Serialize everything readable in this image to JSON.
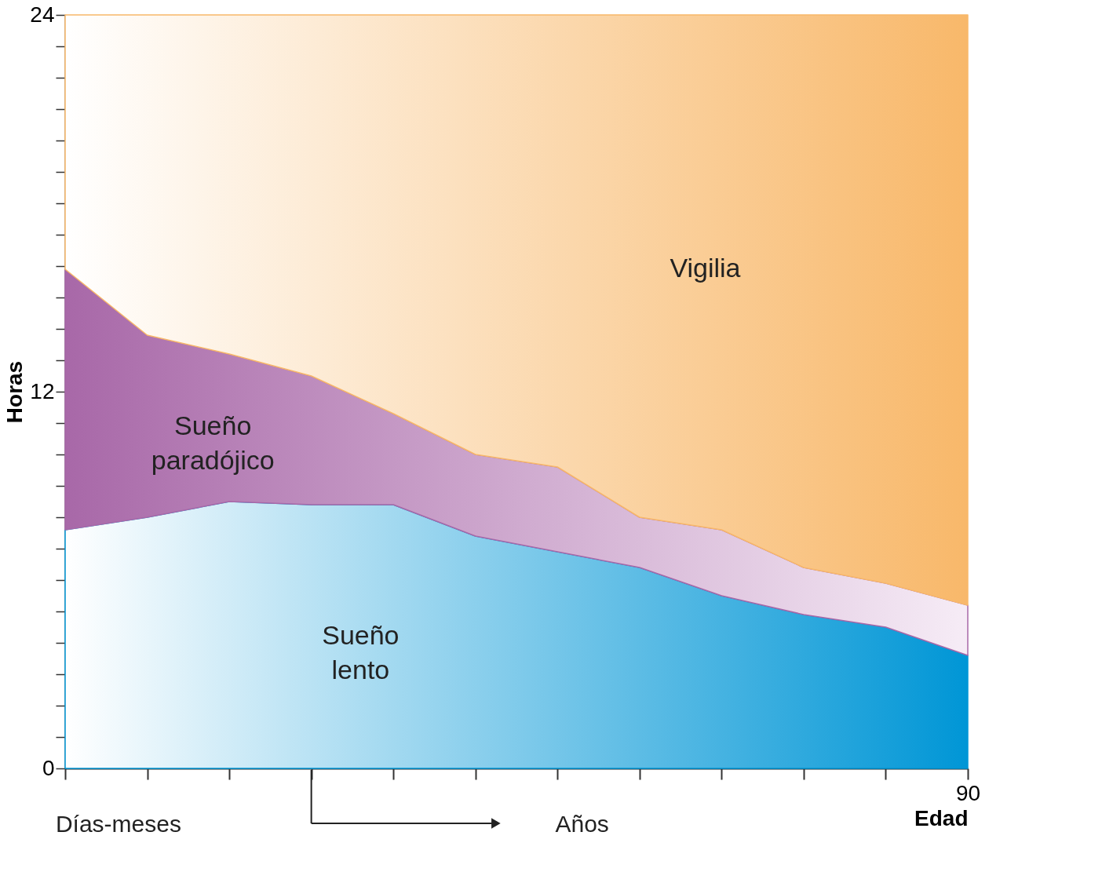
{
  "chart_data": {
    "type": "area",
    "stacked": true,
    "xlabel": "Edad",
    "ylabel": "Horas",
    "categories": [
      null,
      null,
      null,
      null,
      null,
      null,
      null,
      null,
      null,
      null,
      null,
      "90"
    ],
    "series": [
      {
        "name": "Sueño lento",
        "color": "#0096d6",
        "values": [
          7.6,
          8.0,
          8.5,
          8.4,
          8.4,
          7.4,
          6.9,
          6.4,
          5.5,
          4.9,
          4.5,
          3.6
        ]
      },
      {
        "name": "Sueño paradójico",
        "color": "#a868a8",
        "values": [
          8.3,
          5.8,
          4.7,
          4.1,
          2.9,
          2.6,
          2.7,
          1.6,
          2.1,
          1.5,
          1.4,
          1.6
        ]
      },
      {
        "name": "Vigilia",
        "color": "#f8b86a",
        "values": [
          8.1,
          10.2,
          10.8,
          11.5,
          12.7,
          14.0,
          14.4,
          16.0,
          16.4,
          17.6,
          18.1,
          18.8
        ]
      }
    ],
    "ylim": [
      0,
      24
    ],
    "yticks": [
      0,
      {
        "value": 1,
        "label": null
      },
      {
        "value": 2,
        "label": null
      },
      {
        "value": 3,
        "label": null
      },
      {
        "value": 4,
        "label": null
      },
      {
        "value": 5,
        "label": null
      },
      {
        "value": 6,
        "label": null
      },
      {
        "value": 7,
        "label": null
      },
      {
        "value": 8,
        "label": null
      },
      {
        "value": 9,
        "label": null
      },
      {
        "value": 10,
        "label": null
      },
      {
        "value": 11,
        "label": null
      },
      12,
      {
        "value": 13,
        "label": null
      },
      {
        "value": 14,
        "label": null
      },
      {
        "value": 15,
        "label": null
      },
      {
        "value": 16,
        "label": null
      },
      {
        "value": 17,
        "label": null
      },
      {
        "value": 18,
        "label": null
      },
      {
        "value": 19,
        "label": null
      },
      {
        "value": 20,
        "label": null
      },
      {
        "value": 21,
        "label": null
      },
      {
        "value": 22,
        "label": null
      },
      {
        "value": 23,
        "label": null
      },
      24
    ],
    "annotations": [
      "Días-meses",
      "Años"
    ],
    "grid": false
  }
}
